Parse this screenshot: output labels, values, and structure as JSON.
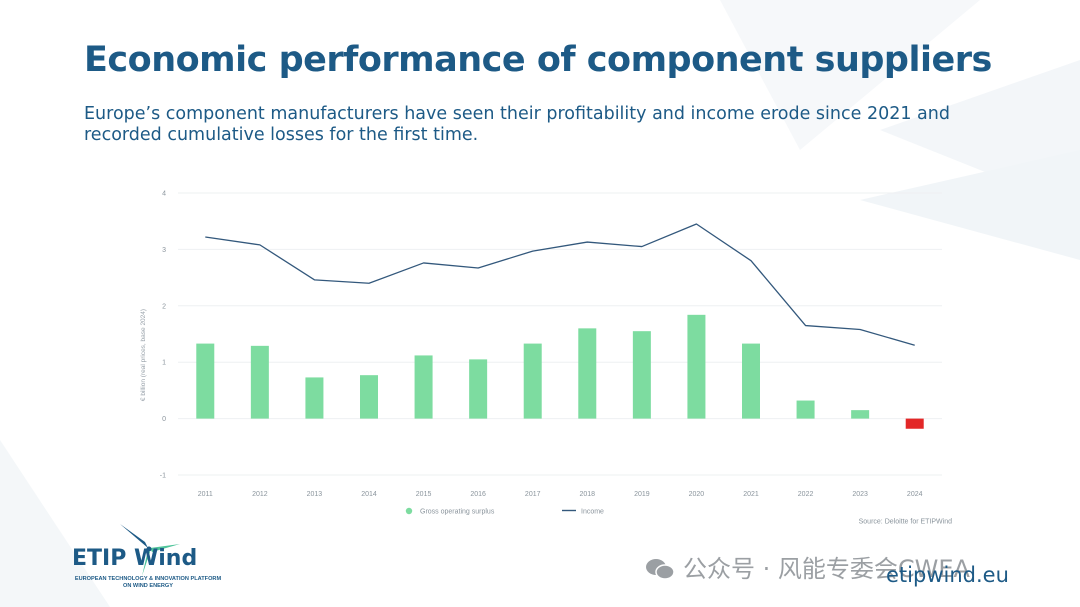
{
  "header": {
    "title": "Economic performance of component suppliers",
    "subtitle": "Europe’s component manufacturers have seen their profitability and income erode since 2021 and recorded cumulative losses for the first time."
  },
  "footer": {
    "logo_name": "ETIP Wind",
    "logo_sub": "EUROPEAN TECHNOLOGY & INNOVATION PLATFORM ON WIND ENERGY",
    "website": "etipwind.eu",
    "watermark": "公众号 · 风能专委会CWEA"
  },
  "chart_data": {
    "type": "bar",
    "title": "",
    "ylabel": "€ billion (real prices, base 2024)",
    "xlabel": "",
    "ylim": [
      -1,
      4
    ],
    "yticks": [
      "4",
      "3",
      "2",
      "1",
      "0",
      "-1"
    ],
    "categories": [
      "2011",
      "2012",
      "2013",
      "2014",
      "2015",
      "2016",
      "2017",
      "2018",
      "2019",
      "2020",
      "2021",
      "2022",
      "2023",
      "2024"
    ],
    "series": [
      {
        "name": "Gross operating surplus",
        "type": "bar",
        "color": "#7ddca0",
        "negative_color": "#e32727",
        "values": [
          1.33,
          1.29,
          0.73,
          0.77,
          1.12,
          1.05,
          1.33,
          1.6,
          1.55,
          1.84,
          1.33,
          0.32,
          0.15,
          -0.18
        ]
      },
      {
        "name": "Income",
        "type": "line",
        "color": "#33587c",
        "values": [
          3.22,
          3.08,
          2.46,
          2.4,
          2.76,
          2.67,
          2.97,
          3.13,
          3.05,
          3.45,
          2.8,
          1.65,
          1.58,
          1.3
        ]
      }
    ],
    "legend_position": "bottom-center",
    "source": "Source: Deloitte for ETIPWind"
  }
}
